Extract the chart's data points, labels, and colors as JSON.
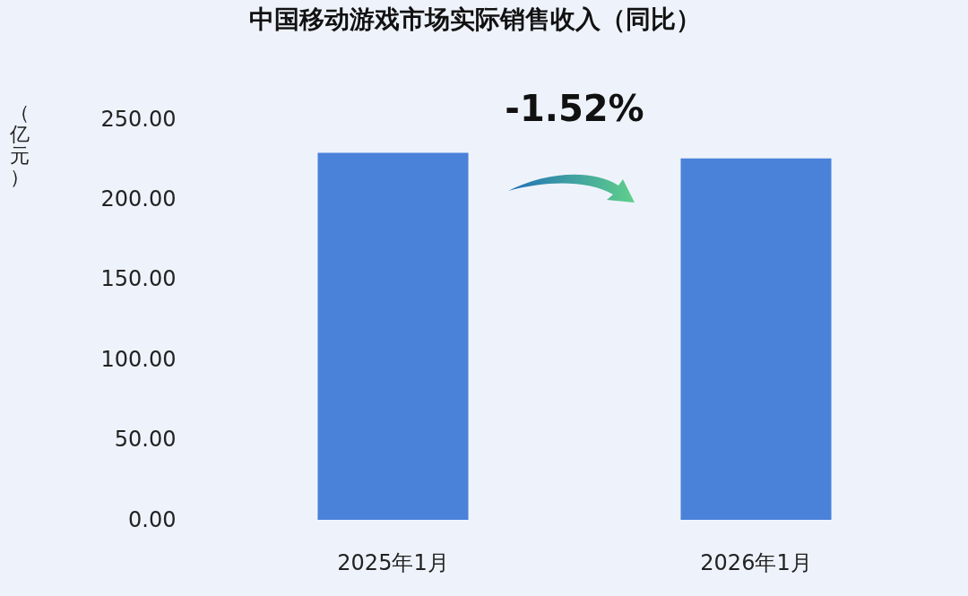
{
  "chart_data": {
    "type": "bar",
    "title": "中国移动游戏市场实际销售收入（同比）",
    "ylabel": "（亿元）",
    "categories": [
      "2025年1月",
      "2026年1月"
    ],
    "values": [
      229,
      225.5
    ],
    "color": "#4a82d9",
    "ylim": [
      0,
      250
    ],
    "yticks": [
      {
        "value": 0,
        "label": "0.00"
      },
      {
        "value": 50,
        "label": "50.00"
      },
      {
        "value": 100,
        "label": "100.00"
      },
      {
        "value": 150,
        "label": "150.00"
      },
      {
        "value": 200,
        "label": "200.00"
      },
      {
        "value": 250,
        "label": "250.00"
      }
    ],
    "grid": false,
    "annotations": [
      "-1.52%"
    ]
  }
}
